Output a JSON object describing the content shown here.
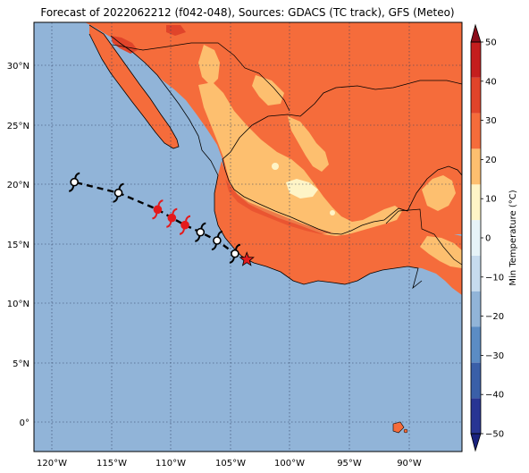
{
  "title": "Forecast of 2022062212 (f042-048), Sources: GDACS (TC track), GFS (Meteo)",
  "map": {
    "lon_ticks": [
      "120°W",
      "115°W",
      "110°W",
      "105°W",
      "100°W",
      "95°W",
      "90°W"
    ],
    "lat_ticks": [
      "30°N",
      "25°N",
      "20°N",
      "15°N",
      "10°N",
      "5°N",
      "0°"
    ],
    "lon_values": [
      -120,
      -115,
      -110,
      -105,
      -100,
      -95,
      -90
    ],
    "lat_values": [
      30,
      25,
      20,
      15,
      10,
      5,
      0
    ],
    "extent": {
      "lon_min": -121.6,
      "lon_max": -85.6,
      "lat_min": -2.4,
      "lat_max": 33.6
    },
    "ocean_color": "#91b4d8",
    "grid": "dotted"
  },
  "colorbar": {
    "label": "Min Temperature (°C)",
    "ticks": [
      "50",
      "40",
      "30",
      "20",
      "10",
      "0",
      "−10",
      "−20",
      "−30",
      "−40",
      "−50"
    ],
    "tick_values": [
      50,
      40,
      30,
      20,
      10,
      0,
      -10,
      -20,
      -30,
      -40,
      -50
    ],
    "extend": "both",
    "colors": [
      "#1a237e",
      "#283593",
      "#3a5fa8",
      "#5b8cc4",
      "#91b4d8",
      "#c6dbee",
      "#e6f3f8",
      "#fef4c6",
      "#fdbf6f",
      "#f56c3b",
      "#e0442a",
      "#c41e1e",
      "#8b0d1a"
    ]
  },
  "chart_data": {
    "type": "map",
    "field": "Min Temperature (°C)",
    "track": {
      "observed_position": {
        "lon": -103.7,
        "lat": 13.7,
        "symbol": "red-star"
      },
      "forecast_points": [
        {
          "lon": -104.7,
          "lat": 14.2,
          "color": "white"
        },
        {
          "lon": -106.2,
          "lat": 15.3,
          "color": "white"
        },
        {
          "lon": -107.6,
          "lat": 16.0,
          "color": "white"
        },
        {
          "lon": -108.9,
          "lat": 16.6,
          "color": "red"
        },
        {
          "lon": -110.0,
          "lat": 17.2,
          "color": "red"
        },
        {
          "lon": -111.2,
          "lat": 17.9,
          "color": "red"
        },
        {
          "lon": -114.5,
          "lat": 19.3,
          "color": "white"
        },
        {
          "lon": -118.2,
          "lat": 20.2,
          "color": "white"
        }
      ]
    }
  },
  "icons": {
    "storm": "tropical-cyclone-icon",
    "current": "star-icon"
  }
}
